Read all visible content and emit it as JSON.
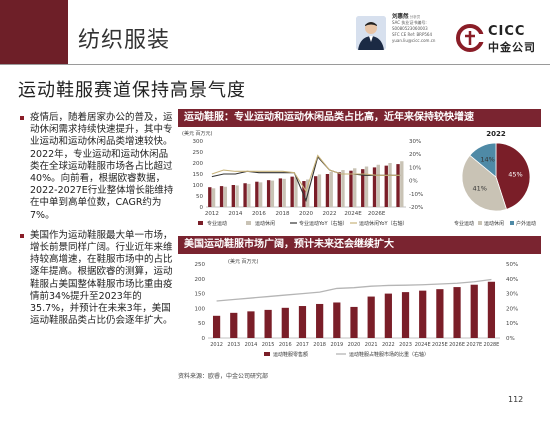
{
  "header": {
    "title": "纺织服装",
    "analyst": {
      "name": "刘惠然",
      "role": "分析员",
      "lines": [
        "SAC 执业证书编号: S0080523060003",
        "SFC CE Ref: BRP564",
        "yuan.liu@cicc.com.cn"
      ]
    },
    "logo": {
      "en": "CICC",
      "cn": "中金公司",
      "color": "#8a1d27"
    }
  },
  "subtitle": "运动鞋服赛道保持高景气度",
  "bullets": [
    "疫情后，随着居家办公的普及，运动休闲需求持续快速提升，其中专业运动和运动休闲品类增速较快。2022年，专业运动和运动休闲品类在全球运动鞋服市场各占比超过40%。向前看，根据欧睿数据，2022-2027E行业整体增长能维持在中单到高单位数，CAGR约为7%。",
    "美国作为运动鞋服最大单一市场，增长前景同样广阔。行业近年来维持较高增速，在鞋服市场中的占比逐年提高。根据欧睿的测算，运动鞋服占美国整体鞋服市场比重由疫情前34%提升至2023年的35.7%，并预计在未来3年，美国运动鞋服品类占比仍会逐年扩大。"
  ],
  "chart1_title": "运动鞋服：专业运动和运动休闲品类占比高，近年来保持较快增速",
  "chart2_title": "美国运动鞋服市场广阔，预计未来还会继续扩大",
  "source": "资料来源：欧睿，中金公司研究部",
  "page_number": "112",
  "chart_data": [
    {
      "type": "bar",
      "unit": "(美元 百万元)",
      "categories": [
        "2012",
        "2013",
        "2014",
        "2015",
        "2016",
        "2017",
        "2018",
        "2019",
        "2020",
        "2021",
        "2022",
        "2023",
        "2024E",
        "2025E",
        "2026E",
        "2027E",
        "2028E"
      ],
      "x_tick_labels": [
        "2012",
        "2014",
        "2016",
        "2018",
        "2020",
        "2022",
        "2024E",
        "2026E"
      ],
      "series": [
        {
          "name": "专业运动",
          "color": "#7a1e28",
          "values": [
            90,
            95,
            100,
            108,
            115,
            122,
            130,
            138,
            118,
            140,
            150,
            158,
            165,
            172,
            180,
            188,
            195
          ]
        },
        {
          "name": "运动休闲",
          "color": "#c9c3b5",
          "values": [
            85,
            92,
            98,
            105,
            112,
            120,
            128,
            135,
            125,
            148,
            160,
            168,
            176,
            184,
            192,
            200,
            208
          ]
        },
        {
          "name": "专业运动YoY（右轴）",
          "axis": "right",
          "color": "#333333",
          "values": [
            3,
            5,
            5,
            7,
            6,
            6,
            6,
            6,
            -15,
            18,
            8,
            5,
            5,
            4,
            4,
            4,
            4
          ]
        },
        {
          "name": "运动休闲YoY（右轴）",
          "axis": "right",
          "color": "#c8b37a",
          "values": [
            5,
            8,
            7,
            7,
            7,
            7,
            7,
            6,
            -8,
            19,
            8,
            5,
            5,
            5,
            4,
            4,
            4
          ]
        }
      ],
      "ylim": [
        0,
        300
      ],
      "y_ticks": [
        0,
        50,
        100,
        150,
        200,
        250,
        300
      ],
      "y2lim": [
        -20,
        30
      ],
      "y2_ticks": [
        "-20%",
        "-10%",
        "0%",
        "10%",
        "20%",
        "30%"
      ],
      "legend": "bottom"
    },
    {
      "type": "pie",
      "title": "2022",
      "slices": [
        {
          "name": "专业运动",
          "value": 45,
          "label": "45%",
          "color": "#7a1e28"
        },
        {
          "name": "运动休闲",
          "value": 41,
          "label": "41%",
          "color": "#c9c3b5"
        },
        {
          "name": "户外运动",
          "value": 14,
          "label": "14%",
          "color": "#4f8aa6"
        }
      ],
      "legend": "bottom"
    },
    {
      "type": "bar",
      "unit": "(美元 百万元)",
      "categories": [
        "2012",
        "2013",
        "2014",
        "2015",
        "2016",
        "2017",
        "2018",
        "2019",
        "2020",
        "2021",
        "2022",
        "2023",
        "2024E",
        "2025E",
        "2026E",
        "2027E",
        "2028E"
      ],
      "series": [
        {
          "name": "运动鞋服零售额",
          "color": "#7a1e28",
          "values": [
            75,
            85,
            90,
            95,
            102,
            108,
            115,
            120,
            105,
            140,
            150,
            155,
            160,
            165,
            172,
            180,
            190
          ]
        },
        {
          "name": "运动鞋服占鞋服市场的比重（右轴）",
          "axis": "right",
          "color": "#b5b5b5",
          "values": [
            25,
            26,
            27,
            28,
            29,
            30,
            31,
            33.5,
            34,
            35,
            35.5,
            35.7,
            36,
            36.5,
            37,
            38,
            39.5
          ]
        }
      ],
      "ylim": [
        0,
        250
      ],
      "y_ticks": [
        0,
        50,
        100,
        150,
        200,
        250
      ],
      "y2lim": [
        0,
        50
      ],
      "y2_ticks": [
        "0%",
        "10%",
        "20%",
        "30%",
        "40%",
        "50%"
      ],
      "legend": "bottom"
    }
  ]
}
